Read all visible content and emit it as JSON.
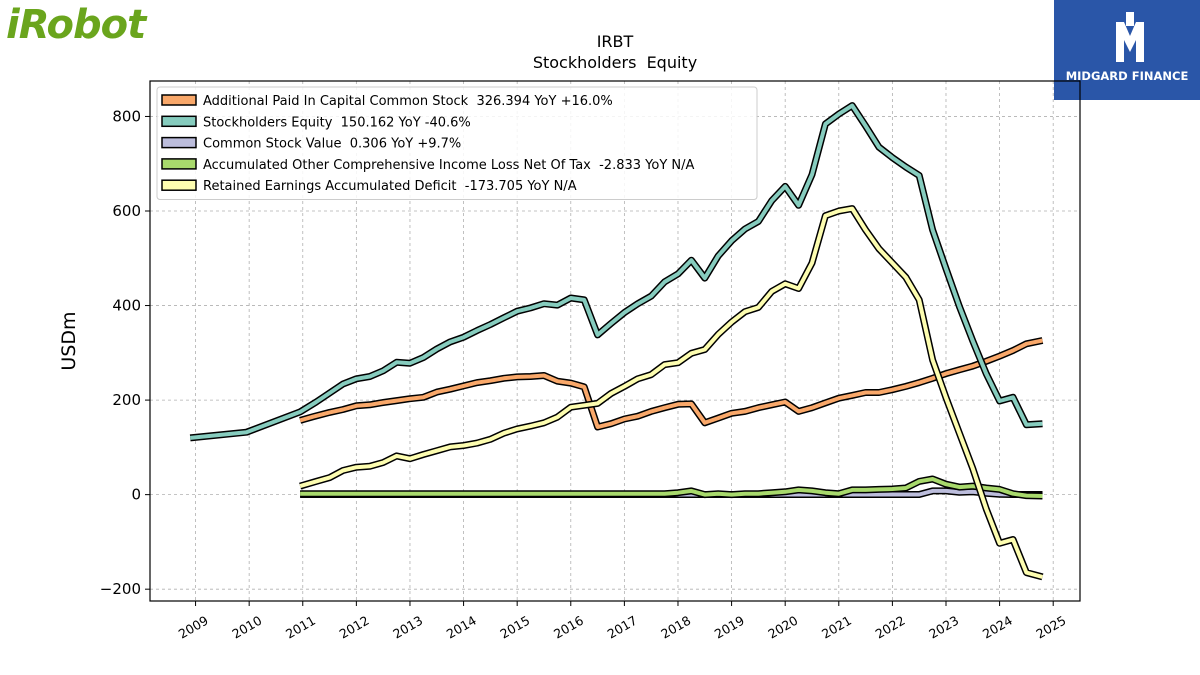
{
  "logos": {
    "left_text": "iRobot",
    "right_text": "MIDGARD FINANCE",
    "left_color": "#6aa51d",
    "right_bg": "#2a56a8"
  },
  "chart_data": {
    "type": "line",
    "title": "IRBT",
    "subtitle": "Stockholders  Equity",
    "xlabel": "",
    "ylabel": "USDm",
    "xlim": [
      2008.15,
      2025.5
    ],
    "ylim": [
      -225,
      875
    ],
    "x_ticks": [
      "2009",
      "2010",
      "2011",
      "2012",
      "2013",
      "2014",
      "2015",
      "2016",
      "2017",
      "2018",
      "2019",
      "2020",
      "2021",
      "2022",
      "2023",
      "2024",
      "2025"
    ],
    "y_ticks": [
      -200,
      0,
      200,
      400,
      600,
      800
    ],
    "y_tick_labels": [
      "−200",
      "0",
      "200",
      "400",
      "600",
      "800"
    ],
    "grid": true,
    "legend_position": "top-left",
    "series": [
      {
        "name": "Additional Paid In Capital Common Stock  326.394 YoY +16.0%",
        "color": "#f9a86a",
        "points": [
          [
            2010.95,
            157
          ],
          [
            2011.2,
            165
          ],
          [
            2011.5,
            174
          ],
          [
            2011.75,
            180
          ],
          [
            2012.0,
            188
          ],
          [
            2012.25,
            190
          ],
          [
            2012.5,
            195
          ],
          [
            2012.75,
            199
          ],
          [
            2013.0,
            203
          ],
          [
            2013.25,
            206
          ],
          [
            2013.5,
            217
          ],
          [
            2013.75,
            223
          ],
          [
            2014.0,
            230
          ],
          [
            2014.25,
            237
          ],
          [
            2014.5,
            241
          ],
          [
            2014.75,
            246
          ],
          [
            2015.0,
            249
          ],
          [
            2015.25,
            250
          ],
          [
            2015.5,
            252
          ],
          [
            2015.75,
            240
          ],
          [
            2016.0,
            236
          ],
          [
            2016.25,
            228
          ],
          [
            2016.5,
            143
          ],
          [
            2016.75,
            150
          ],
          [
            2017.0,
            160
          ],
          [
            2017.25,
            166
          ],
          [
            2017.5,
            176
          ],
          [
            2017.75,
            184
          ],
          [
            2018.0,
            191
          ],
          [
            2018.25,
            192
          ],
          [
            2018.5,
            152
          ],
          [
            2018.75,
            162
          ],
          [
            2019.0,
            172
          ],
          [
            2019.25,
            176
          ],
          [
            2019.5,
            184
          ],
          [
            2019.75,
            190
          ],
          [
            2020.0,
            196
          ],
          [
            2020.25,
            176
          ],
          [
            2020.5,
            184
          ],
          [
            2020.75,
            194
          ],
          [
            2021.0,
            204
          ],
          [
            2021.25,
            210
          ],
          [
            2021.5,
            216
          ],
          [
            2021.75,
            216
          ],
          [
            2022.0,
            222
          ],
          [
            2022.25,
            229
          ],
          [
            2022.5,
            237
          ],
          [
            2022.75,
            246
          ],
          [
            2023.0,
            256
          ],
          [
            2023.25,
            264
          ],
          [
            2023.5,
            272
          ],
          [
            2023.75,
            282
          ],
          [
            2024.0,
            293
          ],
          [
            2024.25,
            305
          ],
          [
            2024.5,
            319
          ],
          [
            2024.8,
            326
          ]
        ]
      },
      {
        "name": "Stockholders Equity  150.162 YoY -40.6%",
        "color": "#86ccbe",
        "points": [
          [
            2008.9,
            120
          ],
          [
            2009.95,
            132
          ],
          [
            2010.95,
            175
          ],
          [
            2011.25,
            196
          ],
          [
            2011.5,
            215
          ],
          [
            2011.75,
            234
          ],
          [
            2012.0,
            245
          ],
          [
            2012.25,
            250
          ],
          [
            2012.5,
            262
          ],
          [
            2012.75,
            280
          ],
          [
            2013.0,
            278
          ],
          [
            2013.25,
            290
          ],
          [
            2013.5,
            308
          ],
          [
            2013.75,
            323
          ],
          [
            2014.0,
            333
          ],
          [
            2014.25,
            347
          ],
          [
            2014.5,
            360
          ],
          [
            2014.75,
            374
          ],
          [
            2015.0,
            388
          ],
          [
            2015.25,
            395
          ],
          [
            2015.5,
            404
          ],
          [
            2015.75,
            401
          ],
          [
            2016.0,
            416
          ],
          [
            2016.25,
            412
          ],
          [
            2016.5,
            338
          ],
          [
            2016.75,
            362
          ],
          [
            2017.0,
            385
          ],
          [
            2017.25,
            404
          ],
          [
            2017.5,
            420
          ],
          [
            2017.75,
            450
          ],
          [
            2018.0,
            467
          ],
          [
            2018.25,
            496
          ],
          [
            2018.5,
            458
          ],
          [
            2018.75,
            505
          ],
          [
            2019.0,
            537
          ],
          [
            2019.25,
            562
          ],
          [
            2019.5,
            578
          ],
          [
            2019.75,
            622
          ],
          [
            2020.0,
            652
          ],
          [
            2020.25,
            612
          ],
          [
            2020.5,
            677
          ],
          [
            2020.75,
            784
          ],
          [
            2021.0,
            805
          ],
          [
            2021.25,
            823
          ],
          [
            2021.5,
            780
          ],
          [
            2021.75,
            735
          ],
          [
            2022.0,
            713
          ],
          [
            2022.25,
            693
          ],
          [
            2022.5,
            675
          ],
          [
            2022.75,
            560
          ],
          [
            2023.0,
            478
          ],
          [
            2023.25,
            398
          ],
          [
            2023.5,
            325
          ],
          [
            2023.75,
            256
          ],
          [
            2024.0,
            198
          ],
          [
            2024.25,
            206
          ],
          [
            2024.5,
            148
          ],
          [
            2024.8,
            150
          ]
        ]
      },
      {
        "name": "Common Stock Value  0.306 YoY +9.7%",
        "color": "#bcbddc",
        "points": [
          [
            2010.95,
            0.3
          ],
          [
            2022.5,
            0.3
          ],
          [
            2022.75,
            8
          ],
          [
            2023.0,
            8
          ],
          [
            2023.25,
            5
          ],
          [
            2023.5,
            6
          ],
          [
            2023.75,
            3
          ],
          [
            2024.0,
            1
          ],
          [
            2024.25,
            0.3
          ],
          [
            2024.8,
            0.3
          ]
        ]
      },
      {
        "name": "Accumulated Other Comprehensive Income Loss Net Of Tax  -2.833 YoY N/A",
        "color": "#a8d96c",
        "points": [
          [
            2010.95,
            2
          ],
          [
            2017.75,
            2
          ],
          [
            2018.0,
            4
          ],
          [
            2018.25,
            8
          ],
          [
            2018.5,
            0
          ],
          [
            2018.75,
            2
          ],
          [
            2019.0,
            0
          ],
          [
            2019.25,
            2
          ],
          [
            2019.5,
            2
          ],
          [
            2019.75,
            4
          ],
          [
            2020.0,
            6
          ],
          [
            2020.25,
            10
          ],
          [
            2020.5,
            8
          ],
          [
            2020.75,
            4
          ],
          [
            2021.0,
            2
          ],
          [
            2021.25,
            10
          ],
          [
            2021.5,
            10
          ],
          [
            2021.75,
            11
          ],
          [
            2022.0,
            12
          ],
          [
            2022.25,
            14
          ],
          [
            2022.5,
            28
          ],
          [
            2022.75,
            33
          ],
          [
            2023.0,
            22
          ],
          [
            2023.25,
            16
          ],
          [
            2023.5,
            18
          ],
          [
            2023.75,
            14
          ],
          [
            2024.0,
            11
          ],
          [
            2024.25,
            2
          ],
          [
            2024.5,
            -2
          ],
          [
            2024.8,
            -2.8
          ]
        ]
      },
      {
        "name": "Retained Earnings Accumulated Deficit  -173.705 YoY N/A",
        "color": "#fdfdb0",
        "points": [
          [
            2010.95,
            18
          ],
          [
            2011.25,
            28
          ],
          [
            2011.5,
            36
          ],
          [
            2011.75,
            51
          ],
          [
            2012.0,
            58
          ],
          [
            2012.25,
            60
          ],
          [
            2012.5,
            68
          ],
          [
            2012.75,
            82
          ],
          [
            2013.0,
            76
          ],
          [
            2013.25,
            85
          ],
          [
            2013.5,
            93
          ],
          [
            2013.75,
            101
          ],
          [
            2014.0,
            104
          ],
          [
            2014.25,
            109
          ],
          [
            2014.5,
            117
          ],
          [
            2014.75,
            130
          ],
          [
            2015.0,
            139
          ],
          [
            2015.25,
            145
          ],
          [
            2015.5,
            152
          ],
          [
            2015.75,
            164
          ],
          [
            2016.0,
            185
          ],
          [
            2016.25,
            189
          ],
          [
            2016.5,
            193
          ],
          [
            2016.75,
            214
          ],
          [
            2017.0,
            229
          ],
          [
            2017.25,
            245
          ],
          [
            2017.5,
            254
          ],
          [
            2017.75,
            275
          ],
          [
            2018.0,
            279
          ],
          [
            2018.25,
            299
          ],
          [
            2018.5,
            307
          ],
          [
            2018.75,
            339
          ],
          [
            2019.0,
            365
          ],
          [
            2019.25,
            387
          ],
          [
            2019.5,
            396
          ],
          [
            2019.75,
            430
          ],
          [
            2020.0,
            446
          ],
          [
            2020.25,
            436
          ],
          [
            2020.5,
            490
          ],
          [
            2020.75,
            590
          ],
          [
            2021.0,
            600
          ],
          [
            2021.25,
            605
          ],
          [
            2021.5,
            560
          ],
          [
            2021.75,
            520
          ],
          [
            2022.0,
            490
          ],
          [
            2022.25,
            460
          ],
          [
            2022.5,
            412
          ],
          [
            2022.75,
            285
          ],
          [
            2023.0,
            205
          ],
          [
            2023.25,
            130
          ],
          [
            2023.5,
            55
          ],
          [
            2023.75,
            -30
          ],
          [
            2024.0,
            -103
          ],
          [
            2024.25,
            -95
          ],
          [
            2024.5,
            -165
          ],
          [
            2024.8,
            -174
          ]
        ]
      }
    ]
  }
}
